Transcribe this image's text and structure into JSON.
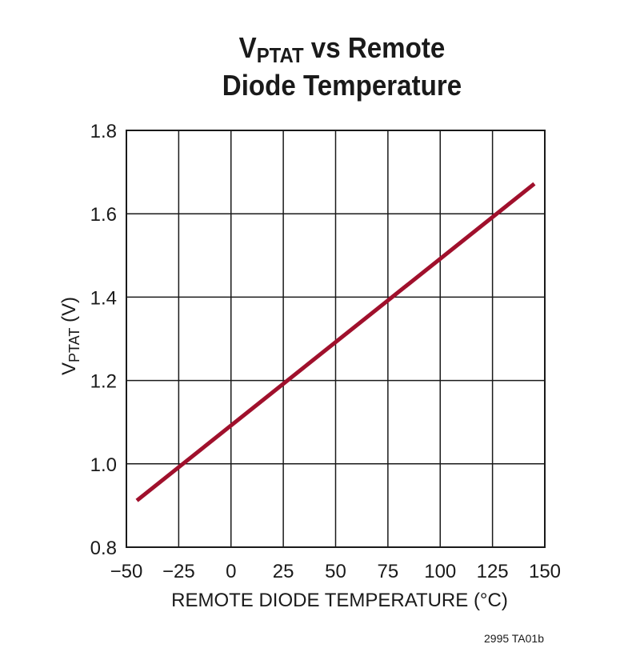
{
  "title": {
    "line1_prefix": "V",
    "line1_sub": "PTAT",
    "line1_suffix": " vs Remote",
    "line2": "Diode Temperature"
  },
  "ylabel": {
    "prefix": "V",
    "sub": "PTAT",
    "suffix": " (V)"
  },
  "footer": "2995 TA01b",
  "colors": {
    "line": "#a0102c",
    "grid": "#1a1a1a"
  },
  "chart_data": {
    "type": "line",
    "title": "VPTAT vs Remote Diode Temperature",
    "xlabel": "REMOTE DIODE TEMPERATURE (°C)",
    "ylabel": "VPTAT (V)",
    "xlim": [
      -50,
      150
    ],
    "ylim": [
      0.8,
      1.8
    ],
    "xticks": [
      -50,
      -25,
      0,
      25,
      50,
      75,
      100,
      125,
      150
    ],
    "xtick_labels": [
      "−50",
      "−25",
      "0",
      "25",
      "50",
      "75",
      "100",
      "125",
      "150"
    ],
    "yticks": [
      0.8,
      1.0,
      1.2,
      1.4,
      1.6,
      1.8
    ],
    "ytick_labels": [
      "0.8",
      "1.0",
      "1.2",
      "1.4",
      "1.6",
      "1.8"
    ],
    "grid": true,
    "series": [
      {
        "x": [
          -45,
          145
        ],
        "y": [
          0.912,
          1.672
        ]
      }
    ]
  }
}
